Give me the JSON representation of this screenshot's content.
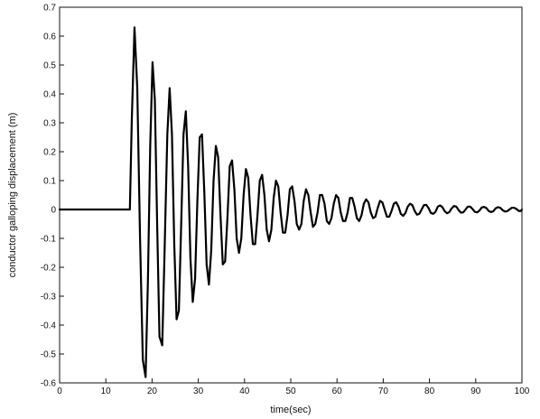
{
  "chart_data": {
    "type": "line",
    "title": "",
    "xlabel": "time(sec)",
    "ylabel": "conductor galloping displacement (m)",
    "xlim": [
      0,
      100
    ],
    "ylim": [
      -0.6,
      0.7
    ],
    "xticks": [
      0,
      10,
      20,
      30,
      40,
      50,
      60,
      70,
      80,
      90,
      100
    ],
    "yticks": [
      -0.6,
      -0.5,
      -0.4,
      -0.3,
      -0.2,
      -0.1,
      0,
      0.1,
      0.2,
      0.3,
      0.4,
      0.5,
      0.6,
      0.7
    ],
    "xtick_labels": [
      "0",
      "10",
      "20",
      "30",
      "40",
      "50",
      "60",
      "70",
      "80",
      "90",
      "100"
    ],
    "ytick_labels": [
      "-0.6",
      "-0.5",
      "-0.4",
      "-0.3",
      "-0.2",
      "-0.1",
      "0",
      "0.1",
      "0.2",
      "0.3",
      "0.4",
      "0.5",
      "0.6",
      "0.7"
    ],
    "grid": false,
    "legend": "none",
    "line_color": "#000000",
    "series": [
      {
        "x": [
          0,
          15.2,
          15.6,
          16.2,
          16.8,
          17.4,
          18.0,
          18.6,
          19.1,
          19.6,
          20.1,
          20.6,
          21.1,
          21.6,
          22.2,
          22.7,
          23.3,
          23.8,
          24.3,
          24.8,
          25.3,
          25.8,
          26.3,
          26.8,
          27.3,
          27.8,
          28.3,
          28.8,
          29.3,
          29.8,
          30.3,
          30.8,
          31.3,
          31.8,
          32.3,
          32.8,
          33.3,
          33.8,
          34.3,
          34.8,
          35.3,
          35.8,
          36.3,
          36.8,
          37.3,
          37.8,
          38.3,
          38.8,
          39.3,
          39.8,
          40.3,
          40.8,
          41.3,
          41.8,
          42.3,
          42.8,
          43.3,
          43.8,
          44.3,
          44.8,
          45.3,
          45.8,
          46.3,
          46.8,
          47.3,
          47.8,
          48.3,
          48.8,
          49.3,
          49.8,
          50.3,
          50.8,
          51.3,
          51.8,
          52.3,
          52.8,
          53.3,
          53.8,
          54.3,
          54.8,
          55.3,
          55.8,
          56.3,
          56.8,
          57.3,
          57.8,
          58.3,
          58.8,
          59.3,
          59.8,
          60.3,
          60.8,
          61.3,
          61.8,
          62.3,
          62.8,
          63.3,
          63.8,
          64.3,
          64.8,
          65.3,
          65.8,
          66.3,
          66.8,
          67.3,
          67.8,
          68.3,
          68.8,
          69.3,
          69.8,
          70.3,
          70.8,
          71.3,
          71.8,
          72.3,
          72.8,
          73.3,
          73.8,
          74.3,
          74.8,
          75.3,
          75.8,
          76.3,
          76.8,
          77.3,
          77.8,
          78.3,
          78.8,
          79.3,
          79.8,
          80.3,
          80.8,
          81.3,
          81.8,
          82.3,
          82.8,
          83.3,
          83.8,
          84.3,
          84.8,
          85.3,
          85.8,
          86.3,
          86.8,
          87.3,
          87.8,
          88.3,
          88.8,
          89.3,
          89.8,
          90.3,
          90.8,
          91.3,
          91.8,
          92.3,
          92.8,
          93.3,
          93.8,
          94.3,
          94.8,
          95.3,
          95.8,
          96.3,
          96.8,
          97.3,
          97.8,
          98.3,
          98.8,
          99.3,
          99.8,
          100
        ],
        "y": [
          0,
          0,
          0.3,
          0.63,
          0.42,
          -0.1,
          -0.52,
          -0.58,
          -0.25,
          0.22,
          0.51,
          0.38,
          -0.05,
          -0.44,
          -0.47,
          -0.15,
          0.26,
          0.42,
          0.26,
          -0.12,
          -0.38,
          -0.35,
          -0.05,
          0.26,
          0.34,
          0.15,
          -0.17,
          -0.32,
          -0.24,
          0.03,
          0.25,
          0.26,
          0.06,
          -0.19,
          -0.26,
          -0.14,
          0.1,
          0.22,
          0.18,
          -0.02,
          -0.19,
          -0.18,
          -0.03,
          0.15,
          0.17,
          0.07,
          -0.1,
          -0.15,
          -0.1,
          0.05,
          0.14,
          0.11,
          -0.02,
          -0.12,
          -0.12,
          -0.02,
          0.1,
          0.12,
          0.05,
          -0.07,
          -0.11,
          -0.07,
          0.04,
          0.1,
          0.08,
          -0.01,
          -0.08,
          -0.08,
          -0.02,
          0.07,
          0.08,
          0.03,
          -0.05,
          -0.07,
          -0.05,
          0.03,
          0.07,
          0.05,
          -0.01,
          -0.06,
          -0.05,
          -0.01,
          0.05,
          0.05,
          0.02,
          -0.04,
          -0.05,
          -0.03,
          0.02,
          0.05,
          0.04,
          -0.01,
          -0.04,
          -0.04,
          -0.01,
          0.04,
          0.04,
          0.01,
          -0.03,
          -0.04,
          -0.02,
          0.02,
          0.035,
          0.025,
          -0.01,
          -0.03,
          -0.025,
          0.005,
          0.03,
          0.025,
          0.0,
          -0.025,
          -0.025,
          -0.005,
          0.02,
          0.025,
          0.01,
          -0.015,
          -0.022,
          -0.012,
          0.01,
          0.02,
          0.015,
          -0.005,
          -0.018,
          -0.015,
          0.0,
          0.015,
          0.016,
          0.005,
          -0.012,
          -0.015,
          -0.008,
          0.01,
          0.014,
          0.008,
          -0.006,
          -0.013,
          -0.009,
          0.004,
          0.012,
          0.01,
          -0.002,
          -0.011,
          -0.01,
          0.0,
          0.01,
          0.01,
          0.002,
          -0.008,
          -0.01,
          -0.004,
          0.007,
          0.009,
          0.005,
          -0.005,
          -0.009,
          -0.006,
          0.004,
          0.008,
          0.006,
          -0.002,
          -0.007,
          -0.006,
          0.0,
          0.006,
          0.006,
          0.002,
          -0.005,
          -0.005,
          0.0
        ]
      }
    ]
  }
}
